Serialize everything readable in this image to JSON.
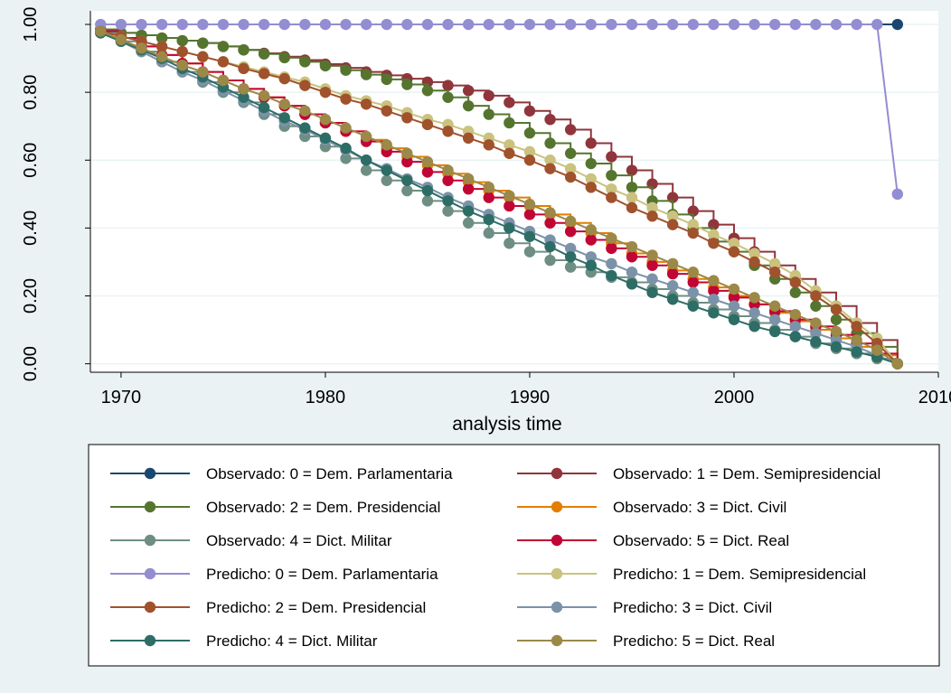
{
  "chart_data": {
    "type": "line",
    "xlabel": "analysis time",
    "ylabel": "",
    "xlim": [
      1968.5,
      2010
    ],
    "ylim": [
      -0.025,
      1.04
    ],
    "x_ticks": [
      1970,
      1980,
      1990,
      2000,
      2010
    ],
    "x_tick_labels": [
      "1970",
      "1980",
      "1990",
      "2000",
      "2010"
    ],
    "y_ticks": [
      0,
      0.2,
      0.4,
      0.6,
      0.8,
      1
    ],
    "y_tick_labels": [
      "0.00",
      "0.20",
      "0.40",
      "0.60",
      "0.80",
      "1.00"
    ],
    "grid": true,
    "legend_position": "bottom",
    "x": [
      1969,
      1970,
      1971,
      1972,
      1973,
      1974,
      1975,
      1976,
      1977,
      1978,
      1979,
      1980,
      1981,
      1982,
      1983,
      1984,
      1985,
      1986,
      1987,
      1988,
      1989,
      1990,
      1991,
      1992,
      1993,
      1994,
      1995,
      1996,
      1997,
      1998,
      1999,
      2000,
      2001,
      2002,
      2003,
      2004,
      2005,
      2006,
      2007,
      2008
    ],
    "series": [
      {
        "name": "Observado: 0 = Dem. Parlamentaria",
        "color": "#1a476f",
        "step": true,
        "marker_x": [
          2008
        ],
        "marker_y": [
          1.0
        ],
        "x": [
          1969,
          2008
        ],
        "values": [
          1.0,
          1.0
        ]
      },
      {
        "name": "Observado: 1 = Dem. Semipresidencial",
        "color": "#90353b",
        "step": true,
        "values": [
          0.985,
          0.975,
          0.968,
          0.96,
          0.952,
          0.945,
          0.935,
          0.925,
          0.915,
          0.905,
          0.895,
          0.883,
          0.872,
          0.86,
          0.85,
          0.84,
          0.83,
          0.82,
          0.805,
          0.79,
          0.77,
          0.745,
          0.72,
          0.69,
          0.65,
          0.61,
          0.57,
          0.53,
          0.49,
          0.45,
          0.41,
          0.37,
          0.33,
          0.29,
          0.25,
          0.21,
          0.17,
          0.12,
          0.07,
          0.0
        ]
      },
      {
        "name": "Observado: 2 = Dem. Presidencial",
        "color": "#55752f",
        "step": true,
        "values": [
          0.985,
          0.975,
          0.968,
          0.96,
          0.952,
          0.945,
          0.935,
          0.925,
          0.913,
          0.902,
          0.89,
          0.878,
          0.865,
          0.852,
          0.838,
          0.823,
          0.805,
          0.785,
          0.76,
          0.735,
          0.71,
          0.68,
          0.65,
          0.62,
          0.59,
          0.555,
          0.52,
          0.48,
          0.44,
          0.4,
          0.36,
          0.33,
          0.29,
          0.25,
          0.21,
          0.17,
          0.13,
          0.09,
          0.05,
          0.0
        ]
      },
      {
        "name": "Observado: 3 = Dict. Civil",
        "color": "#e37e00",
        "step": true,
        "values": [
          0.98,
          0.96,
          0.935,
          0.91,
          0.885,
          0.86,
          0.835,
          0.81,
          0.785,
          0.76,
          0.735,
          0.71,
          0.685,
          0.66,
          0.635,
          0.61,
          0.585,
          0.56,
          0.535,
          0.51,
          0.49,
          0.465,
          0.44,
          0.415,
          0.385,
          0.355,
          0.325,
          0.3,
          0.275,
          0.25,
          0.225,
          0.2,
          0.175,
          0.15,
          0.125,
          0.1,
          0.075,
          0.05,
          0.025,
          0.0
        ]
      },
      {
        "name": "Observado: 4 = Dict. Militar",
        "color": "#6e8e84",
        "step": true,
        "values": [
          0.975,
          0.95,
          0.92,
          0.89,
          0.86,
          0.83,
          0.8,
          0.77,
          0.735,
          0.7,
          0.67,
          0.64,
          0.605,
          0.57,
          0.54,
          0.51,
          0.48,
          0.45,
          0.415,
          0.385,
          0.355,
          0.33,
          0.305,
          0.285,
          0.27,
          0.255,
          0.24,
          0.22,
          0.2,
          0.18,
          0.16,
          0.14,
          0.12,
          0.1,
          0.08,
          0.06,
          0.045,
          0.03,
          0.015,
          0.0
        ]
      },
      {
        "name": "Observado: 5 = Dict. Real",
        "color": "#c10534",
        "step": true,
        "values": [
          0.98,
          0.96,
          0.935,
          0.91,
          0.885,
          0.86,
          0.835,
          0.81,
          0.785,
          0.76,
          0.735,
          0.71,
          0.685,
          0.655,
          0.625,
          0.595,
          0.565,
          0.54,
          0.515,
          0.49,
          0.465,
          0.44,
          0.415,
          0.39,
          0.365,
          0.34,
          0.315,
          0.29,
          0.265,
          0.24,
          0.215,
          0.195,
          0.175,
          0.155,
          0.13,
          0.11,
          0.085,
          0.06,
          0.03,
          0.0
        ]
      },
      {
        "name": "Predicho: 0 = Dem. Parlamentaria",
        "color": "#938dd2",
        "step": false,
        "values": [
          1,
          1,
          1,
          1,
          1,
          1,
          1,
          1,
          1,
          1,
          1,
          1,
          1,
          1,
          1,
          1,
          1,
          1,
          1,
          1,
          1,
          1,
          1,
          1,
          1,
          1,
          1,
          1,
          1,
          1,
          1,
          1,
          1,
          1,
          1,
          1,
          1,
          1,
          1,
          0.5
        ]
      },
      {
        "name": "Predicho: 1 = Dem. Semipresidencial",
        "color": "#cac27e",
        "step": false,
        "values": [
          0.98,
          0.965,
          0.95,
          0.935,
          0.92,
          0.905,
          0.89,
          0.875,
          0.86,
          0.845,
          0.83,
          0.81,
          0.79,
          0.775,
          0.76,
          0.74,
          0.72,
          0.705,
          0.685,
          0.665,
          0.645,
          0.625,
          0.6,
          0.575,
          0.545,
          0.515,
          0.49,
          0.46,
          0.435,
          0.41,
          0.38,
          0.355,
          0.325,
          0.295,
          0.26,
          0.215,
          0.17,
          0.12,
          0.075,
          0.0
        ]
      },
      {
        "name": "Predicho: 2 = Dem. Presidencial",
        "color": "#a0522d",
        "step": false,
        "values": [
          0.98,
          0.965,
          0.95,
          0.935,
          0.92,
          0.905,
          0.89,
          0.87,
          0.855,
          0.84,
          0.82,
          0.8,
          0.78,
          0.765,
          0.745,
          0.725,
          0.705,
          0.685,
          0.665,
          0.645,
          0.62,
          0.6,
          0.575,
          0.55,
          0.52,
          0.49,
          0.46,
          0.435,
          0.41,
          0.385,
          0.355,
          0.33,
          0.3,
          0.27,
          0.24,
          0.2,
          0.16,
          0.11,
          0.06,
          0.0
        ]
      },
      {
        "name": "Predicho: 3 = Dict. Civil",
        "color": "#7b92a8",
        "step": false,
        "values": [
          0.975,
          0.95,
          0.92,
          0.89,
          0.86,
          0.835,
          0.805,
          0.775,
          0.745,
          0.715,
          0.69,
          0.66,
          0.63,
          0.6,
          0.575,
          0.545,
          0.52,
          0.49,
          0.465,
          0.44,
          0.415,
          0.39,
          0.365,
          0.34,
          0.315,
          0.295,
          0.27,
          0.25,
          0.23,
          0.21,
          0.19,
          0.17,
          0.15,
          0.13,
          0.11,
          0.09,
          0.07,
          0.05,
          0.025,
          0.0
        ]
      },
      {
        "name": "Predicho: 4 = Dict. Militar",
        "color": "#2d6d66",
        "step": false,
        "values": [
          0.975,
          0.95,
          0.925,
          0.9,
          0.87,
          0.845,
          0.815,
          0.785,
          0.755,
          0.725,
          0.695,
          0.665,
          0.635,
          0.6,
          0.57,
          0.54,
          0.51,
          0.48,
          0.45,
          0.425,
          0.4,
          0.375,
          0.345,
          0.315,
          0.29,
          0.26,
          0.235,
          0.21,
          0.19,
          0.17,
          0.15,
          0.13,
          0.11,
          0.095,
          0.08,
          0.065,
          0.05,
          0.035,
          0.02,
          0.0
        ]
      },
      {
        "name": "Predicho: 5 = Dict. Real",
        "color": "#9c8847",
        "step": false,
        "values": [
          0.98,
          0.955,
          0.93,
          0.905,
          0.88,
          0.86,
          0.835,
          0.81,
          0.79,
          0.765,
          0.745,
          0.72,
          0.695,
          0.67,
          0.645,
          0.62,
          0.595,
          0.57,
          0.545,
          0.52,
          0.495,
          0.47,
          0.445,
          0.42,
          0.395,
          0.37,
          0.345,
          0.32,
          0.295,
          0.27,
          0.245,
          0.22,
          0.195,
          0.17,
          0.145,
          0.12,
          0.095,
          0.07,
          0.04,
          0.0
        ]
      }
    ]
  }
}
